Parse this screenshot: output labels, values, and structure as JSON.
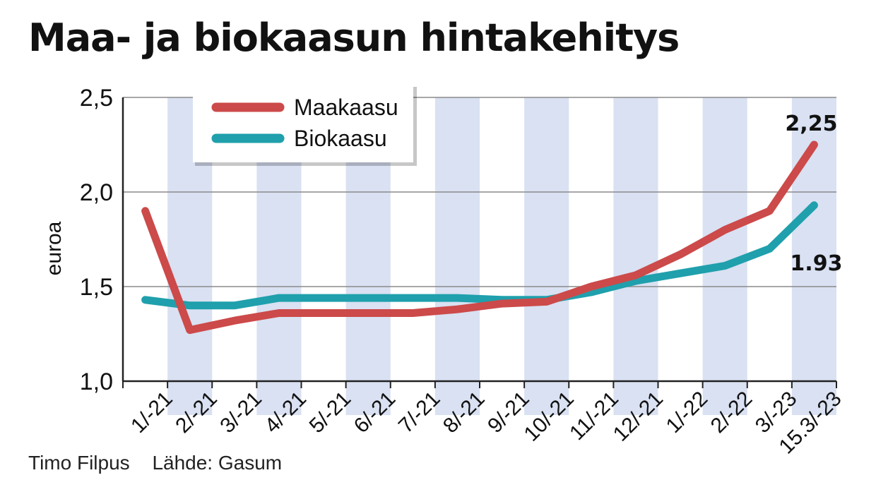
{
  "title": "Maa- ja biokaasun hintakehitys",
  "credits": {
    "author": "Timo Filpus",
    "source": "Lähde: Gasum"
  },
  "colors": {
    "maakaasu": "#cc4a4a",
    "biokaasu": "#1fa0ac",
    "band": "#d9e1f2",
    "grid": "#8a8a8a",
    "axis": "#222222"
  },
  "chart_data": {
    "type": "line",
    "title": "Maa- ja biokaasun hintakehitys",
    "xlabel": "",
    "ylabel": "euroa",
    "categories": [
      "1/-21",
      "2/-21",
      "3/-21",
      "4/-21",
      "5/-21",
      "6/-21",
      "7/-21",
      "8/-21",
      "9/-21",
      "10/-21",
      "11/-21",
      "12/-21",
      "1/-22",
      "2/-22",
      "3/-23",
      "15.3/-23"
    ],
    "ylim": [
      1.0,
      2.5
    ],
    "yticks": [
      1.0,
      1.5,
      2.0,
      2.5
    ],
    "ytick_labels": [
      "1,0",
      "1,5",
      "2,0",
      "2,5"
    ],
    "grid": "horizontal",
    "alternating_bands": true,
    "legend_position": "top-left",
    "series": [
      {
        "name": "Maakaasu",
        "color": "#cc4a4a",
        "values": [
          1.9,
          1.27,
          1.32,
          1.36,
          1.36,
          1.36,
          1.36,
          1.38,
          1.41,
          1.42,
          1.5,
          1.56,
          1.67,
          1.8,
          1.9,
          2.25
        ]
      },
      {
        "name": "Biokaasu",
        "color": "#1fa0ac",
        "values": [
          1.43,
          1.4,
          1.4,
          1.44,
          1.44,
          1.44,
          1.44,
          1.44,
          1.43,
          1.43,
          1.47,
          1.53,
          1.57,
          1.61,
          1.7,
          1.93
        ]
      }
    ],
    "annotations": [
      {
        "series": "Maakaasu",
        "text": "2,25"
      },
      {
        "series": "Biokaasu",
        "text": "1.93"
      }
    ]
  }
}
